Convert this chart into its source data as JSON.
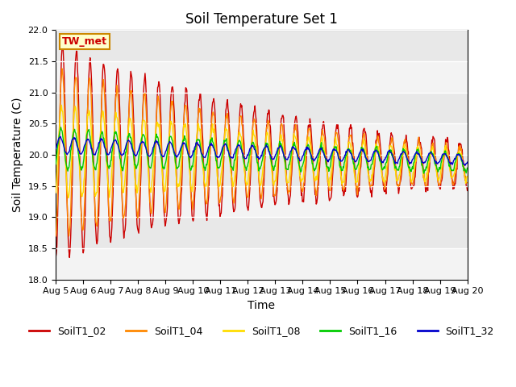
{
  "title": "Soil Temperature Set 1",
  "xlabel": "Time",
  "ylabel": "Soil Temperature (C)",
  "ylim": [
    18.0,
    22.0
  ],
  "yticks": [
    18.0,
    18.5,
    19.0,
    19.5,
    20.0,
    20.5,
    21.0,
    21.5,
    22.0
  ],
  "bg_color": "#e8e8e8",
  "annotation_text": "TW_met",
  "annotation_color": "#cc0000",
  "annotation_bg": "#ffffcc",
  "annotation_border": "#cc8800",
  "series_colors": [
    "#cc0000",
    "#ff8800",
    "#ffdd00",
    "#00cc00",
    "#0000cc"
  ],
  "legend_labels": [
    "SoilT1_02",
    "SoilT1_04",
    "SoilT1_08",
    "SoilT1_16",
    "SoilT1_32"
  ],
  "n_days": 15,
  "start_day": 5,
  "start_month": "Aug"
}
